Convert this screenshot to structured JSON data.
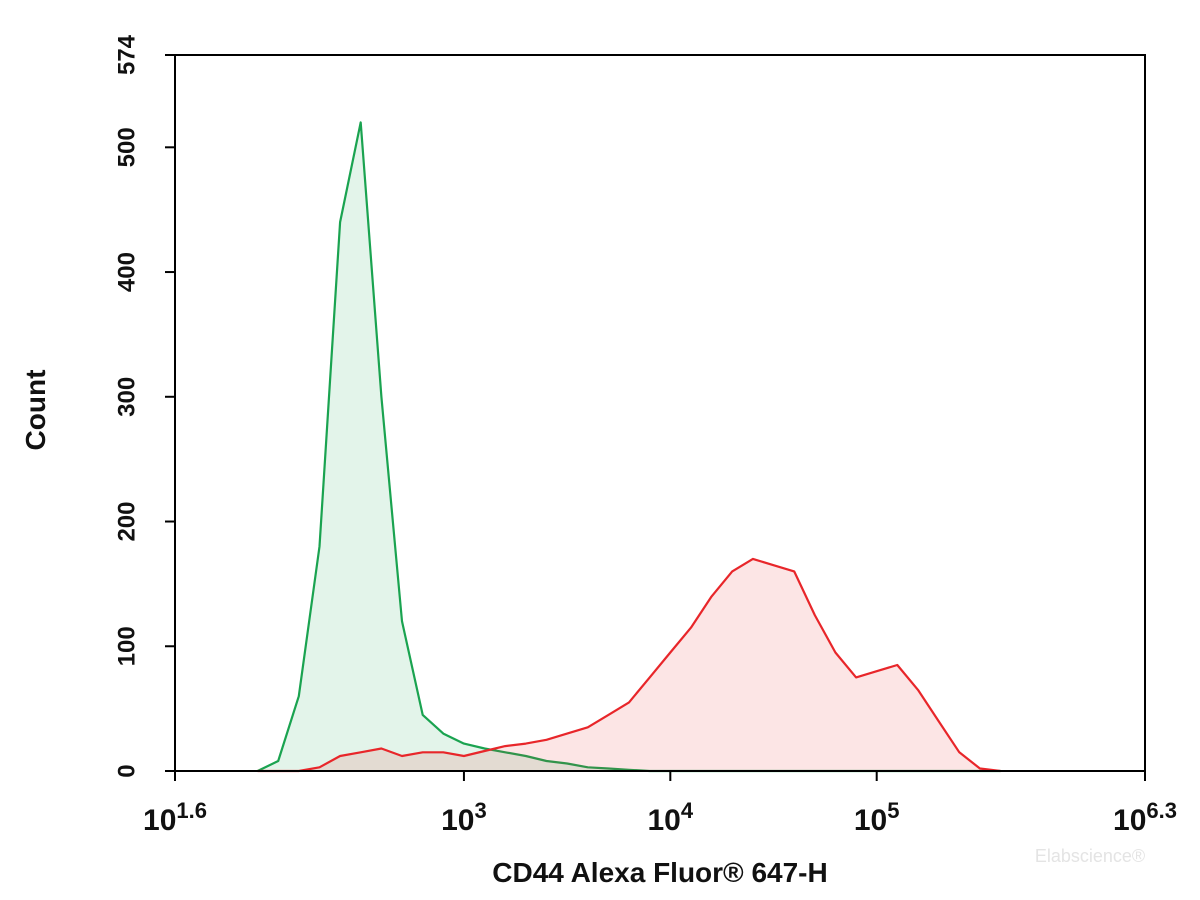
{
  "chart_data": {
    "type": "area",
    "x_label": "CD44 Alexa Fluor® 647-H",
    "y_label": "Count",
    "watermark": "Elabscience®",
    "xscale": "log",
    "xlim": [
      39.81,
      1995262
    ],
    "ylim": [
      0,
      574
    ],
    "xticks": [
      {
        "value": 39.81,
        "label": "10",
        "sup": "1.6"
      },
      {
        "value": 1000,
        "label": "10",
        "sup": "3"
      },
      {
        "value": 10000,
        "label": "10",
        "sup": "4"
      },
      {
        "value": 100000,
        "label": "10",
        "sup": "5"
      },
      {
        "value": 1995262,
        "label": "10",
        "sup": "6.3"
      }
    ],
    "yticks": [
      0,
      100,
      200,
      300,
      400,
      500,
      574
    ],
    "x": [
      100,
      125.9,
      158.5,
      199.5,
      251.2,
      316.2,
      398.1,
      501.2,
      631,
      794.3,
      1000,
      1259,
      1585,
      1995,
      2512,
      3162,
      3981,
      5012,
      6310,
      7943,
      10000,
      12589,
      15849,
      19953,
      25119,
      31623,
      39811,
      50119,
      63096,
      79433,
      100000,
      125893,
      158489,
      199526,
      251189,
      316228,
      398107
    ],
    "series": [
      {
        "color": "#1aa350",
        "fill": "rgba(26,163,80,0.12)",
        "values": [
          0,
          8,
          60,
          180,
          440,
          520,
          300,
          120,
          45,
          30,
          22,
          18,
          15,
          12,
          8,
          6,
          3,
          2,
          1,
          0,
          0,
          0,
          0,
          0,
          0,
          0,
          0,
          0,
          0,
          0,
          0,
          0,
          0,
          0,
          0,
          0,
          0
        ]
      },
      {
        "color": "#e8262a",
        "fill": "rgba(232,38,42,0.12)",
        "values": [
          0,
          0,
          0,
          3,
          12,
          15,
          18,
          12,
          15,
          15,
          12,
          16,
          20,
          22,
          25,
          30,
          35,
          45,
          55,
          75,
          95,
          115,
          140,
          160,
          170,
          165,
          160,
          125,
          95,
          75,
          80,
          85,
          65,
          40,
          15,
          2,
          0
        ]
      }
    ]
  }
}
